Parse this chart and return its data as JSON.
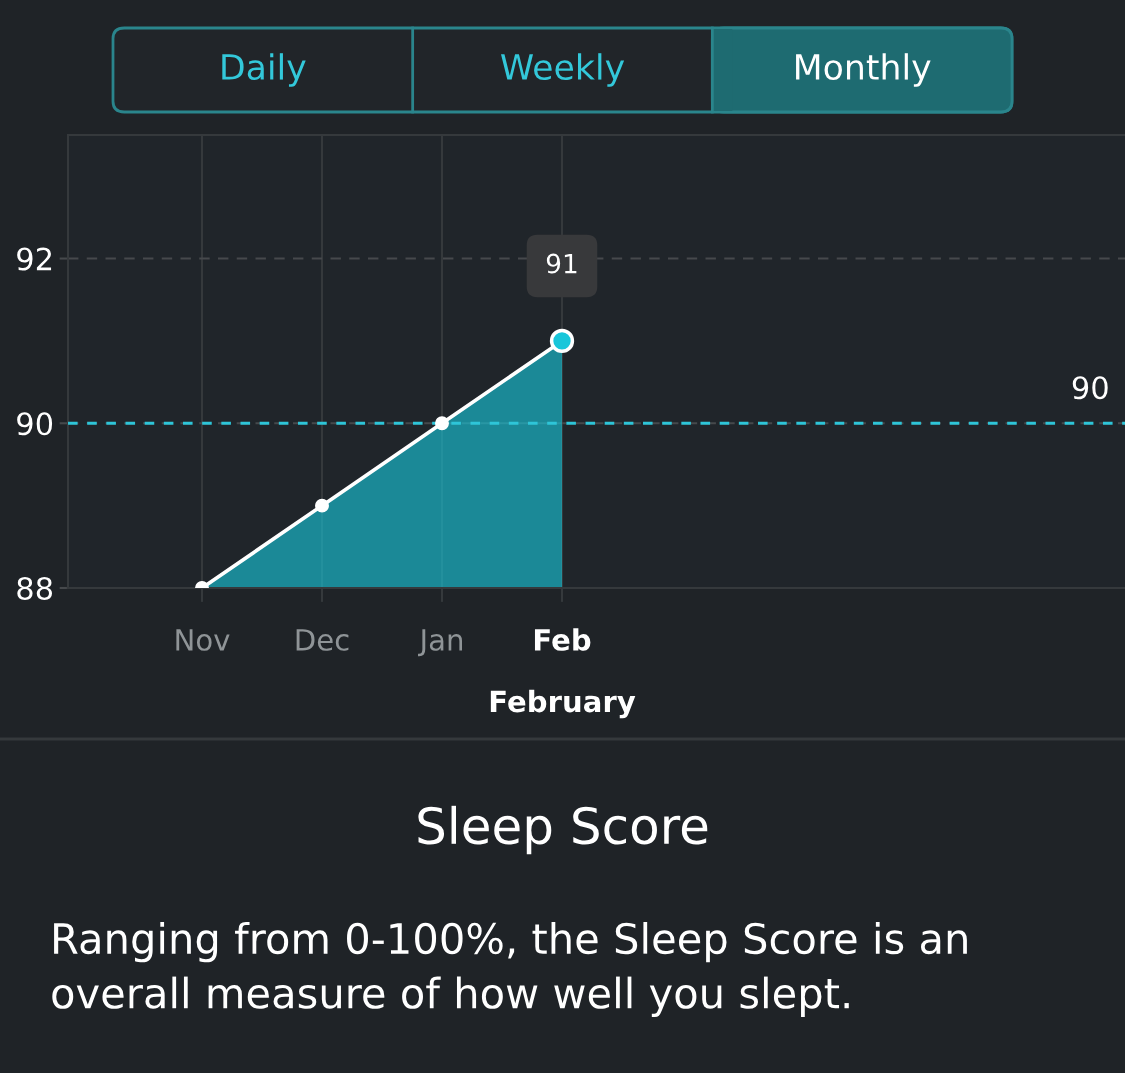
{
  "chart_data": {
    "type": "area",
    "title": "Sleep Score",
    "subtitle": "Ranging from 0-100%, the Sleep Score is an overall measure of how well you slept.",
    "xlabel": "February",
    "categories": [
      "Nov",
      "Dec",
      "Jan",
      "Feb"
    ],
    "values": [
      88,
      89,
      90,
      91
    ],
    "color": "#18c6da",
    "ylim": [
      88,
      93.5
    ],
    "yticks": [
      88,
      90,
      92
    ],
    "grid": true,
    "marker": "circle",
    "ref_lines": [
      {
        "axis": "y",
        "value": 90,
        "label": "90",
        "color": "#2ec5d8",
        "line_style": "dotted"
      }
    ],
    "annotations": [
      "Daily",
      "Weekly",
      "Monthly",
      {
        "text": "91",
        "x": "Feb",
        "y": 91
      }
    ]
  }
}
